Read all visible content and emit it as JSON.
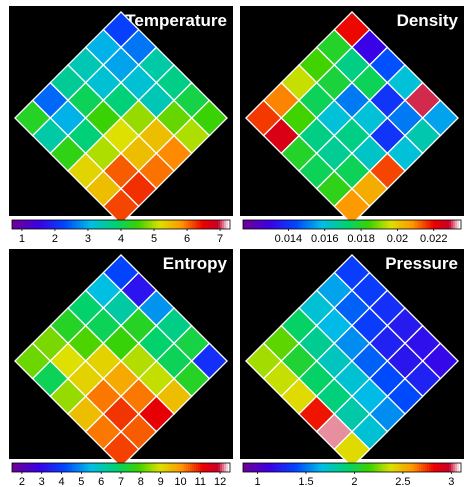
{
  "chart_data": [
    {
      "type": "heatmap",
      "title": "Temperature",
      "grid_size": 6,
      "rotation_deg": 45,
      "colorbar": {
        "min": 0.7,
        "max": 7.3,
        "ticks": [
          "1",
          "2",
          "3",
          "4",
          "5",
          "6",
          "7"
        ]
      },
      "values": [
        [
          2.2,
          2.6,
          3.5,
          3.7,
          4.1,
          4.5
        ],
        [
          3.0,
          2.9,
          3.2,
          3.4,
          4.7,
          5.0
        ],
        [
          3.4,
          3.2,
          3.8,
          4.9,
          5.5,
          5.9
        ],
        [
          3.6,
          4.0,
          4.5,
          5.2,
          5.5,
          6.0
        ],
        [
          2.5,
          3.0,
          3.8,
          5.0,
          6.1,
          6.3
        ],
        [
          4.3,
          3.5,
          4.4,
          5.3,
          5.5,
          6.2
        ]
      ]
    },
    {
      "type": "heatmap",
      "title": "Density",
      "grid_size": 6,
      "rotation_deg": 45,
      "colorbar": {
        "min": 0.0115,
        "max": 0.0235,
        "ticks": [
          "0.014",
          "0.016",
          "0.018",
          "0.02",
          "0.022"
        ]
      },
      "values": [
        [
          0.022,
          0.013,
          0.0145,
          0.016,
          0.023,
          0.0155
        ],
        [
          0.018,
          0.017,
          0.0175,
          0.014,
          0.015,
          0.0165
        ],
        [
          0.0185,
          0.0178,
          0.015,
          0.016,
          0.014,
          0.016
        ],
        [
          0.0195,
          0.0175,
          0.016,
          0.017,
          0.0162,
          0.0215
        ],
        [
          0.021,
          0.0185,
          0.017,
          0.0168,
          0.0175,
          0.0205
        ],
        [
          0.0216,
          0.0225,
          0.018,
          0.0175,
          0.0182,
          0.0208
        ]
      ]
    },
    {
      "type": "heatmap",
      "title": "Entropy",
      "grid_size": 6,
      "rotation_deg": 45,
      "colorbar": {
        "min": 1.5,
        "max": 12.5,
        "ticks": [
          "2",
          "3",
          "4",
          "5",
          "6",
          "7",
          "8",
          "9",
          "10",
          "11",
          "12"
        ]
      },
      "values": [
        [
          4.1,
          3.2,
          5.0,
          6.5,
          7.2,
          3.7
        ],
        [
          5.5,
          6.2,
          7.5,
          6.8,
          7.0,
          7.5
        ],
        [
          6.8,
          7.0,
          7.8,
          8.7,
          8.8,
          9.5
        ],
        [
          7.5,
          8.0,
          9.2,
          9.8,
          10.3,
          11.3
        ],
        [
          8.3,
          9.0,
          9.2,
          10.3,
          10.8,
          10.5
        ],
        [
          8.2,
          7.0,
          8.5,
          9.5,
          10.3,
          10.7
        ]
      ]
    },
    {
      "type": "heatmap",
      "title": "Pressure",
      "grid_size": 6,
      "rotation_deg": 45,
      "colorbar": {
        "min": 0.85,
        "max": 3.1,
        "ticks": [
          "1",
          "1.5",
          "2",
          "2.5",
          "3"
        ]
      },
      "values": [
        [
          1.35,
          1.35,
          1.3,
          1.22,
          1.18,
          1.15
        ],
        [
          1.6,
          1.45,
          1.35,
          1.25,
          1.2,
          1.25
        ],
        [
          1.7,
          1.65,
          1.55,
          1.45,
          1.4,
          1.4
        ],
        [
          1.95,
          1.85,
          1.75,
          1.7,
          1.65,
          1.55
        ],
        [
          2.2,
          2.05,
          1.95,
          1.9,
          1.8,
          1.7
        ],
        [
          2.3,
          2.35,
          2.4,
          2.8,
          3.05,
          2.4
        ]
      ]
    }
  ]
}
